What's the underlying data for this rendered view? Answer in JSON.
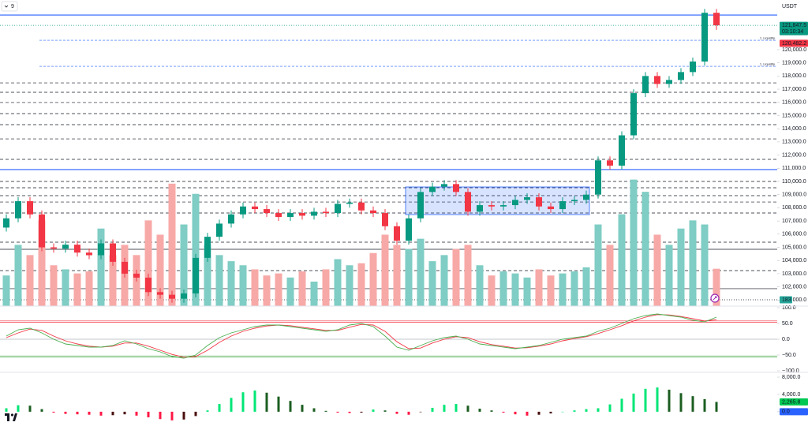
{
  "header": {
    "symbol": "9",
    "currency": "USDT"
  },
  "chart_data": [
    {
      "type": "candlestick",
      "open": [
        106500,
        107200,
        108500,
        107500,
        105000,
        104900,
        105200,
        104600,
        104400,
        105300,
        103900,
        103000,
        102700,
        101600,
        101400,
        101100,
        101500,
        104200,
        105800,
        106800,
        107500,
        108100,
        107900,
        107600,
        107300,
        107600,
        107400,
        107700,
        107600,
        108300,
        108400,
        107800,
        107600,
        106600,
        105500,
        107200,
        109200,
        109600,
        109800,
        109200,
        107700,
        108200,
        108100,
        108200,
        108600,
        108800,
        108100,
        107900,
        108500,
        108600,
        109000,
        111600,
        111200,
        113500,
        116700,
        118000,
        117400,
        117700,
        118300,
        119100,
        122800
      ],
      "high": [
        107500,
        108800,
        108800,
        107800,
        105300,
        105500,
        105500,
        104900,
        105600,
        105600,
        104200,
        103300,
        103000,
        101900,
        101700,
        101800,
        104500,
        106100,
        107100,
        107800,
        108400,
        108400,
        108200,
        107900,
        107900,
        107900,
        108000,
        108000,
        108600,
        108700,
        108700,
        108100,
        107900,
        106900,
        107500,
        109500,
        109900,
        110100,
        110100,
        109500,
        108500,
        108500,
        108500,
        108900,
        109100,
        109100,
        108400,
        108800,
        108900,
        109300,
        111900,
        111900,
        113800,
        117000,
        118300,
        118300,
        118000,
        118600,
        119400,
        123100,
        123100
      ],
      "low": [
        106200,
        106900,
        107200,
        104700,
        104600,
        104600,
        104300,
        104100,
        104100,
        103600,
        102700,
        102400,
        101300,
        101100,
        100800,
        100800,
        101200,
        103900,
        105500,
        106500,
        107200,
        107600,
        107300,
        107000,
        107000,
        107100,
        107100,
        107300,
        107300,
        108000,
        107500,
        107300,
        106300,
        105200,
        105200,
        106900,
        108900,
        109300,
        108900,
        107400,
        107400,
        107800,
        107800,
        107900,
        108300,
        107800,
        107600,
        107600,
        108200,
        108300,
        108700,
        110900,
        110900,
        113200,
        116400,
        117100,
        117100,
        117400,
        118000,
        118800,
        121500
      ],
      "close": [
        107200,
        108500,
        107500,
        105000,
        104900,
        105200,
        104600,
        104400,
        105300,
        103900,
        103000,
        102700,
        101600,
        101400,
        101100,
        101500,
        104200,
        105800,
        106800,
        107500,
        108100,
        107900,
        107600,
        107300,
        107600,
        107400,
        107700,
        107600,
        108300,
        108400,
        107800,
        107600,
        106600,
        105500,
        107200,
        109200,
        109600,
        109800,
        109200,
        107700,
        108200,
        108100,
        108200,
        108600,
        108800,
        108100,
        107900,
        108500,
        108600,
        109000,
        111600,
        111200,
        113500,
        116700,
        118000,
        117400,
        117700,
        118300,
        119100,
        122800,
        121847.5
      ],
      "up_color": "#089981",
      "down_color": "#f23645",
      "ylim": [
        100540,
        123770
      ],
      "yticks": [
        {
          "value": 101000,
          "label": "101,000.0"
        },
        {
          "value": 102000,
          "label": "102,000.0"
        },
        {
          "value": 103000,
          "label": "103,000.0"
        },
        {
          "value": 104000,
          "label": "104,000.0"
        },
        {
          "value": 105000,
          "label": "105,000.0"
        },
        {
          "value": 106000,
          "label": "106,000.0"
        },
        {
          "value": 107000,
          "label": "107,000.0"
        },
        {
          "value": 108000,
          "label": "108,000.0"
        },
        {
          "value": 109000,
          "label": "109,000.0"
        },
        {
          "value": 110000,
          "label": "110,000.0"
        },
        {
          "value": 111000,
          "label": "111,000.0"
        },
        {
          "value": 112000,
          "label": "112,000.0"
        },
        {
          "value": 113000,
          "label": "113,000.0"
        },
        {
          "value": 114000,
          "label": "114,000.0"
        },
        {
          "value": 115000,
          "label": "115,000.0"
        },
        {
          "value": 116000,
          "label": "116,000.0"
        },
        {
          "value": 117000,
          "label": "117,000.0"
        },
        {
          "value": 118000,
          "label": "118,000.0"
        },
        {
          "value": 119000,
          "label": "119,000.0"
        },
        {
          "value": 120000,
          "label": "120,000.0"
        }
      ],
      "grid": false,
      "levels": [
        {
          "value": 122630,
          "color": "#2962ff",
          "style": "solid"
        },
        {
          "value": 110900,
          "color": "#2962ff",
          "style": "solid"
        },
        {
          "value": 104850,
          "color": "#131722",
          "style": "solid"
        },
        {
          "value": 101860,
          "color": "#131722",
          "style": "solid"
        },
        {
          "value": 117480,
          "color": "#131722",
          "style": "dashed"
        },
        {
          "value": 116765,
          "color": "#131722",
          "style": "dashed"
        },
        {
          "value": 115990,
          "color": "#131722",
          "style": "dashed"
        },
        {
          "value": 115150,
          "color": "#131722",
          "style": "dashed"
        },
        {
          "value": 114310,
          "color": "#131722",
          "style": "dashed"
        },
        {
          "value": 113230,
          "color": "#131722",
          "style": "dashed"
        },
        {
          "value": 111675,
          "color": "#131722",
          "style": "dashed"
        },
        {
          "value": 110000,
          "color": "#131722",
          "style": "dashed"
        },
        {
          "value": 109520,
          "color": "#131722",
          "style": "dashed"
        },
        {
          "value": 108920,
          "color": "#131722",
          "style": "dashed"
        },
        {
          "value": 108440,
          "color": "#131722",
          "style": "dashed"
        },
        {
          "value": 107605,
          "color": "#131722",
          "style": "dashed"
        },
        {
          "value": 105390,
          "color": "#131722",
          "style": "dashed"
        },
        {
          "value": 103235,
          "color": "#131722",
          "style": "dashed"
        },
        {
          "value": 101020,
          "color": "#131722",
          "style": "dotted"
        }
      ],
      "annotations": [
        {
          "text": "1. Liquidity",
          "value": 120715
        },
        {
          "text": "1. Liquidity",
          "value": 118740
        }
      ],
      "zones": [
        {
          "start": 34,
          "end": 49,
          "low": 107485,
          "high": 109580,
          "color": "#2962ff"
        }
      ],
      "badges": [
        {
          "value": 121847.5,
          "label": "121,847.5",
          "color": "#089981"
        },
        {
          "value": 120482.2,
          "label": "120,482.2",
          "color": "#f23645"
        }
      ],
      "countdown": "03:10:34"
    },
    {
      "type": "bar",
      "values": [
        150,
        300,
        250,
        420,
        200,
        180,
        160,
        170,
        380,
        250,
        300,
        250,
        420,
        350,
        600,
        400,
        550,
        300,
        250,
        220,
        200,
        180,
        150,
        160,
        140,
        170,
        120,
        180,
        230,
        200,
        210,
        260,
        350,
        300,
        280,
        330,
        220,
        250,
        280,
        300,
        200,
        150,
        170,
        160,
        140,
        180,
        150,
        160,
        170,
        190,
        400,
        300,
        450,
        620,
        560,
        350,
        300,
        380,
        420,
        400,
        183
      ],
      "up_color": "#7fcdc4",
      "down_color": "#f7a9a7",
      "ylim": [
        0,
        1500
      ]
    },
    {
      "type": "line",
      "series": [
        {
          "color": "#f23645",
          "values": [
            5,
            20,
            32,
            28,
            10,
            -5,
            -15,
            -22,
            -25,
            -22,
            -12,
            -12,
            -22,
            -35,
            -48,
            -57,
            -55,
            -35,
            -10,
            10,
            25,
            35,
            42,
            45,
            43,
            38,
            33,
            28,
            28,
            38,
            47,
            45,
            25,
            -8,
            -30,
            -28,
            -12,
            0,
            8,
            5,
            -8,
            -17,
            -22,
            -28,
            -27,
            -22,
            -15,
            -5,
            2,
            8,
            18,
            30,
            43,
            58,
            70,
            78,
            77,
            72,
            65,
            58,
            62
          ]
        },
        {
          "color": "#4caf50",
          "values": [
            10,
            30,
            35,
            20,
            0,
            -15,
            -20,
            -25,
            -25,
            -20,
            -5,
            -15,
            -30,
            -40,
            -55,
            -60,
            -50,
            -20,
            5,
            20,
            30,
            40,
            45,
            45,
            40,
            35,
            30,
            25,
            30,
            45,
            50,
            40,
            10,
            -25,
            -35,
            -20,
            -5,
            5,
            10,
            0,
            -15,
            -20,
            -25,
            -30,
            -25,
            -20,
            -10,
            0,
            5,
            10,
            25,
            35,
            50,
            65,
            75,
            80,
            75,
            70,
            60,
            55,
            70
          ]
        }
      ],
      "ylim": [
        -105,
        105
      ],
      "yticks": [
        {
          "value": 100,
          "label": "100.0"
        },
        {
          "value": 50,
          "label": "50.0"
        },
        {
          "value": 0,
          "label": "0.0"
        },
        {
          "value": -50,
          "label": "−50.0"
        },
        {
          "value": -100,
          "label": "−100.0"
        }
      ],
      "levels": [
        {
          "value": 58,
          "color": "#f23645",
          "style": "solid"
        },
        {
          "value": 54,
          "color": "#f23645",
          "style": "solid"
        },
        {
          "value": -53,
          "color": "#4caf50",
          "style": "solid"
        },
        {
          "value": -57,
          "color": "#4caf50",
          "style": "solid"
        },
        {
          "value": 0,
          "color": "#b2b5be",
          "style": "solid"
        }
      ]
    },
    {
      "type": "bar",
      "values": [
        800,
        1500,
        1400,
        600,
        -200,
        -500,
        -600,
        -700,
        -900,
        -800,
        -600,
        -900,
        -1300,
        -1700,
        -2000,
        -1800,
        -1000,
        300,
        1800,
        3200,
        4500,
        4900,
        4400,
        3500,
        2500,
        1600,
        800,
        200,
        -200,
        -300,
        -200,
        500,
        300,
        -500,
        -700,
        -100,
        900,
        1600,
        1800,
        1400,
        700,
        300,
        -200,
        -600,
        -900,
        -700,
        -400,
        0,
        300,
        600,
        800,
        1700,
        3000,
        4200,
        5300,
        5600,
        5100,
        4300,
        3600,
        2900,
        2265.8
      ],
      "colors": {
        "rising_positive": "#00e676",
        "falling_positive": "#1b5e20",
        "falling_negative": "#ff1744",
        "rising_negative": "#4a0e0e"
      },
      "ylim": [
        -3300,
        9100
      ],
      "yticks": [
        {
          "value": 8000,
          "label": "8,000.0"
        },
        {
          "value": 4000,
          "label": "4,000.0"
        },
        {
          "value": 0,
          "label": "0.0"
        }
      ],
      "badges": [
        {
          "value": 2265.8,
          "label": "2,265.8",
          "color": "#00c853"
        },
        {
          "value": 0,
          "label": "0.0",
          "color": "#2962ff"
        }
      ]
    }
  ]
}
